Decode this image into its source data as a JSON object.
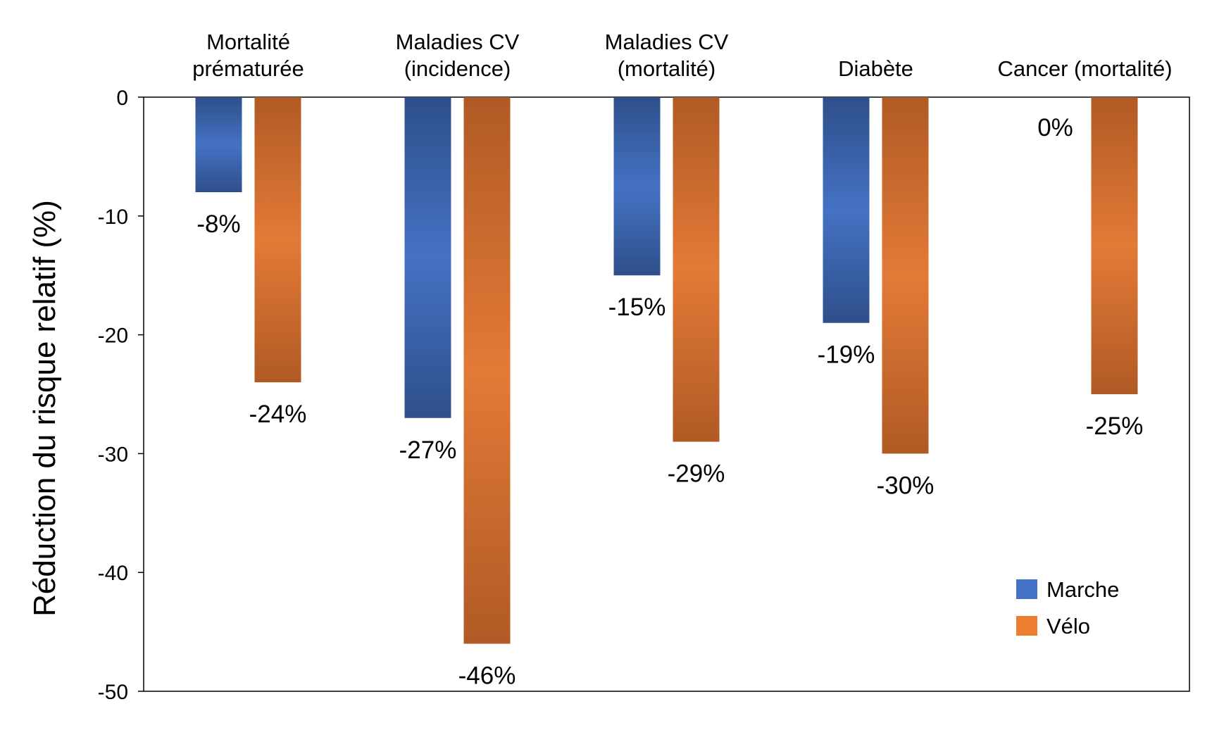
{
  "chart_data": {
    "type": "bar",
    "categories": [
      [
        "Mortalité",
        "prématurée"
      ],
      [
        "Maladies CV",
        "(incidence)"
      ],
      [
        "Maladies CV",
        "(mortalité)"
      ],
      [
        "Diabète"
      ],
      [
        "Cancer (mortalité)"
      ]
    ],
    "series": [
      {
        "name": "Marche",
        "color": "#4472c4",
        "values": [
          -8,
          -27,
          -15,
          -19,
          0
        ],
        "labels": [
          "-8%",
          "-27%",
          "-15%",
          "-19%",
          "0%"
        ]
      },
      {
        "name": "Vélo",
        "color": "#ed7d31",
        "values": [
          -24,
          -46,
          -29,
          -30,
          -25
        ],
        "labels": [
          "-24%",
          "-46%",
          "-29%",
          "-30%",
          "-25%"
        ]
      }
    ],
    "title": "",
    "xlabel": "",
    "ylabel": "Réduction du risque relatif (%)",
    "ylim": [
      -50,
      0
    ],
    "yticks": [
      0,
      -10,
      -20,
      -30,
      -40,
      -50
    ],
    "grid": false,
    "legend_position": "bottom-right"
  }
}
